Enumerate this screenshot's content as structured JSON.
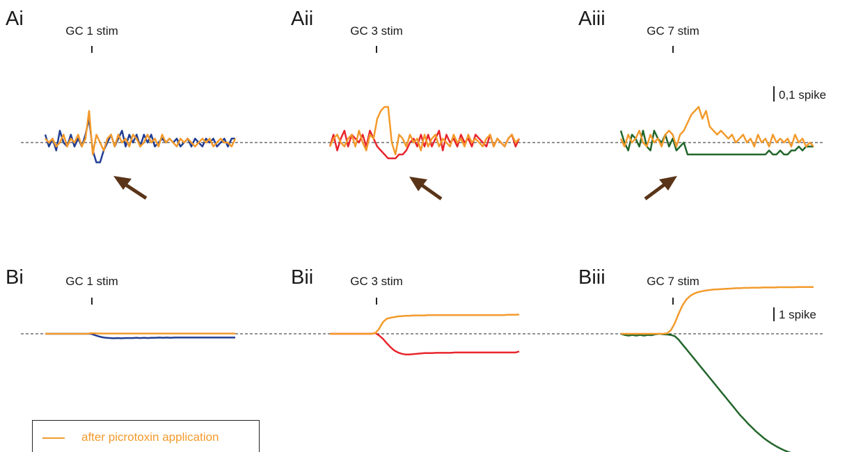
{
  "colors": {
    "picrotoxin": "#f39a2b",
    "gc1": "#213e92",
    "gc3": "#e8252d",
    "gc7": "#21652a",
    "arrow": "#5a3418"
  },
  "legend": {
    "label": "after picrotoxin application"
  },
  "scale_bars": {
    "row_a": "0,1 spike",
    "row_b": "1 spike"
  },
  "chart_data": [
    {
      "type": "line",
      "panel": "Ai",
      "stim_label": "GC 1 stim",
      "x": [
        0,
        1,
        2,
        3,
        4,
        5,
        6,
        7,
        8,
        9,
        10,
        11,
        12,
        13,
        14,
        15,
        16,
        17,
        18,
        19,
        20,
        21,
        22,
        23,
        24,
        25,
        26,
        27,
        28,
        29,
        30,
        31,
        32,
        33,
        34,
        35,
        36,
        37,
        38,
        39,
        40,
        41,
        42,
        43,
        44,
        45,
        46,
        47,
        48,
        49,
        50,
        51,
        52
      ],
      "stim_index": 12,
      "ylim": [
        -0.1,
        0.1
      ],
      "series": [
        {
          "color_key": "gc1",
          "values": [
            0.02,
            -0.01,
            0.01,
            -0.02,
            0.03,
            0,
            -0.01,
            0.02,
            -0.01,
            0.01,
            -0.01,
            0.02,
            0.06,
            -0.02,
            -0.05,
            -0.05,
            -0.02,
            0,
            0.02,
            -0.01,
            0.01,
            0.03,
            -0.01,
            0.02,
            0,
            0.02,
            -0.01,
            0.02,
            0,
            0.02,
            -0.01,
            0,
            0.01,
            0,
            0.01,
            0,
            0.01,
            -0.01,
            0,
            0.01,
            -0.01,
            0.01,
            0,
            -0.01,
            0.01,
            0,
            0.01,
            -0.01,
            0,
            0.01,
            -0.01,
            0.01,
            0.01
          ]
        },
        {
          "color_key": "picrotoxin",
          "values": [
            0.01,
            0,
            0.01,
            -0.01,
            0,
            0.02,
            -0.01,
            0.01,
            0,
            0.02,
            -0.01,
            0.01,
            0.08,
            -0.03,
            0.02,
            0,
            -0.02,
            0.01,
            0.02,
            -0.01,
            0.02,
            0,
            0.01,
            -0.01,
            0.02,
            0.01,
            -0.01,
            0,
            0.02,
            0,
            0.01,
            -0.01,
            0.02,
            0,
            0.01,
            0,
            -0.01,
            0.01,
            0,
            0.01,
            0,
            -0.01,
            0,
            0.01,
            0,
            0.01,
            -0.01,
            0,
            0.01,
            0,
            0,
            -0.01,
            0.01
          ]
        }
      ]
    },
    {
      "type": "line",
      "panel": "Aii",
      "stim_label": "GC 3 stim",
      "x": [
        0,
        1,
        2,
        3,
        4,
        5,
        6,
        7,
        8,
        9,
        10,
        11,
        12,
        13,
        14,
        15,
        16,
        17,
        18,
        19,
        20,
        21,
        22,
        23,
        24,
        25,
        26,
        27,
        28,
        29,
        30,
        31,
        32,
        33,
        34,
        35,
        36,
        37,
        38,
        39,
        40,
        41,
        42,
        43,
        44,
        45,
        46,
        47,
        48,
        49,
        50,
        51,
        52
      ],
      "stim_index": 13,
      "ylim": [
        -0.1,
        0.1
      ],
      "series": [
        {
          "color_key": "gc3",
          "values": [
            -0.01,
            0.02,
            -0.02,
            0.01,
            0.03,
            -0.01,
            0.02,
            0.01,
            0,
            0.02,
            -0.01,
            0.03,
            0.01,
            -0.01,
            -0.02,
            -0.03,
            -0.04,
            -0.04,
            -0.04,
            -0.03,
            -0.03,
            -0.02,
            0,
            0.01,
            -0.01,
            0.02,
            -0.01,
            0.02,
            -0.01,
            0.01,
            0.03,
            -0.02,
            0.02,
            0,
            0.01,
            -0.01,
            0.02,
            0,
            0.01,
            -0.01,
            0.02,
            0.01,
            0,
            -0.01,
            0.02,
            -0.01,
            0.01,
            0,
            -0.01,
            0.01,
            0.02,
            -0.01,
            0.01
          ]
        },
        {
          "color_key": "picrotoxin",
          "values": [
            -0.01,
            0.01,
            0.02,
            0,
            -0.01,
            0.01,
            0.02,
            -0.01,
            0.03,
            0,
            -0.02,
            0.02,
            0.01,
            0.06,
            0.08,
            0.09,
            0.09,
            0,
            -0.03,
            0.02,
            0.01,
            -0.01,
            0.02,
            0,
            0.01,
            -0.02,
            0.02,
            -0.01,
            0.01,
            0.02,
            -0.01,
            0.01,
            0,
            -0.01,
            0.02,
            0,
            0.01,
            -0.01,
            0.02,
            0,
            0.01,
            0,
            -0.01,
            0.01,
            0.02,
            -0.01,
            0.01,
            0,
            -0.01,
            0.01,
            0.02,
            0,
            0.01
          ]
        }
      ]
    },
    {
      "type": "line",
      "panel": "Aiii",
      "stim_label": "GC 7 stim",
      "x": [
        0,
        1,
        2,
        3,
        4,
        5,
        6,
        7,
        8,
        9,
        10,
        11,
        12,
        13,
        14,
        15,
        16,
        17,
        18,
        19,
        20,
        21,
        22,
        23,
        24,
        25,
        26,
        27,
        28,
        29,
        30,
        31,
        32,
        33,
        34,
        35,
        36,
        37,
        38,
        39,
        40,
        41,
        42,
        43,
        44,
        45,
        46,
        47,
        48,
        49,
        50,
        51,
        52
      ],
      "stim_index": 15,
      "ylim": [
        -0.1,
        0.1
      ],
      "series": [
        {
          "color_key": "gc7",
          "values": [
            0.03,
            0,
            -0.02,
            0.02,
            0.01,
            -0.01,
            0.03,
            -0.01,
            -0.02,
            0.03,
            0.01,
            0,
            0.02,
            -0.01,
            0.01,
            -0.02,
            -0.01,
            0,
            -0.03,
            -0.03,
            -0.03,
            -0.03,
            -0.03,
            -0.03,
            -0.03,
            -0.03,
            -0.03,
            -0.03,
            -0.03,
            -0.03,
            -0.03,
            -0.03,
            -0.03,
            -0.03,
            -0.03,
            -0.03,
            -0.03,
            -0.03,
            -0.03,
            -0.03,
            -0.02,
            -0.03,
            -0.03,
            -0.02,
            -0.03,
            -0.03,
            -0.02,
            -0.02,
            -0.01,
            -0.02,
            -0.01,
            -0.01,
            -0.01
          ]
        },
        {
          "color_key": "picrotoxin",
          "values": [
            0.01,
            -0.01,
            0.02,
            0,
            0.01,
            0.03,
            0,
            -0.01,
            0.02,
            0,
            0.01,
            -0.01,
            0.02,
            0.03,
            0.02,
            -0.01,
            0.02,
            0.03,
            0.05,
            0.07,
            0.08,
            0.09,
            0.06,
            0.08,
            0.04,
            0.03,
            0.02,
            0.03,
            0.02,
            0.01,
            0.02,
            0,
            0.01,
            0.02,
            0,
            0.01,
            -0.01,
            0.02,
            0,
            0.01,
            -0.01,
            0.02,
            0,
            0.01,
            0,
            0.01,
            -0.01,
            0.02,
            0,
            0.01,
            -0.01,
            0,
            -0.01
          ]
        }
      ]
    },
    {
      "type": "line",
      "panel": "Bi",
      "stim_label": "GC 1 stim",
      "x": [
        0,
        1,
        2,
        3,
        4,
        5,
        6,
        7,
        8,
        9,
        10,
        11,
        12,
        13,
        14,
        15,
        16,
        17,
        18,
        19,
        20,
        21,
        22,
        23,
        24,
        25,
        26,
        27,
        28,
        29,
        30,
        31,
        32,
        33,
        34,
        35,
        36,
        37,
        38,
        39,
        40,
        41,
        42,
        43,
        44,
        45,
        46,
        47,
        48,
        49,
        50
      ],
      "stim_index": 12,
      "ylim": [
        -5,
        2
      ],
      "series": [
        {
          "color_key": "gc1",
          "values": [
            0,
            0,
            0,
            0,
            0,
            0,
            0,
            0,
            0,
            0,
            0,
            0,
            0,
            -0.05,
            -0.1,
            -0.14,
            -0.16,
            -0.17,
            -0.18,
            -0.17,
            -0.18,
            -0.17,
            -0.17,
            -0.17,
            -0.16,
            -0.17,
            -0.16,
            -0.17,
            -0.16,
            -0.16,
            -0.15,
            -0.16,
            -0.15,
            -0.16,
            -0.15,
            -0.15,
            -0.15,
            -0.15,
            -0.15,
            -0.15,
            -0.15,
            -0.15,
            -0.15,
            -0.15,
            -0.15,
            -0.15,
            -0.15,
            -0.15,
            -0.15,
            -0.15,
            -0.15
          ]
        },
        {
          "color_key": "picrotoxin",
          "values": [
            0,
            0,
            0,
            0,
            0,
            0,
            0,
            0,
            0,
            0,
            0,
            0,
            0.02,
            0.02,
            0.01,
            0.01,
            0.01,
            0.01,
            0.01,
            0.01,
            0.01,
            0.01,
            0.01,
            0.01,
            0.01,
            0.01,
            0.01,
            0.01,
            0.01,
            0.01,
            0.01,
            0.01,
            0.01,
            0.01,
            0.01,
            0.01,
            0.01,
            0.01,
            0.01,
            0.01,
            0.01,
            0.01,
            0.01,
            0.01,
            0.01,
            0.01,
            0.01,
            0.01,
            0.01,
            0.01,
            0.01
          ]
        }
      ]
    },
    {
      "type": "line",
      "panel": "Bii",
      "stim_label": "GC 3 stim",
      "x": [
        0,
        1,
        2,
        3,
        4,
        5,
        6,
        7,
        8,
        9,
        10,
        11,
        12,
        13,
        14,
        15,
        16,
        17,
        18,
        19,
        20,
        21,
        22,
        23,
        24,
        25,
        26,
        27,
        28,
        29,
        30,
        31,
        32,
        33,
        34,
        35,
        36,
        37,
        38,
        39,
        40,
        41,
        42,
        43,
        44,
        45,
        46,
        47,
        48,
        49,
        50
      ],
      "stim_index": 13,
      "ylim": [
        -5,
        2
      ],
      "series": [
        {
          "color_key": "gc3",
          "values": [
            0,
            0,
            0,
            0,
            0,
            0,
            0,
            0,
            0,
            0,
            0,
            0,
            0.02,
            -0.05,
            -0.15,
            -0.28,
            -0.4,
            -0.5,
            -0.56,
            -0.6,
            -0.62,
            -0.62,
            -0.61,
            -0.6,
            -0.59,
            -0.58,
            -0.58,
            -0.58,
            -0.57,
            -0.57,
            -0.57,
            -0.57,
            -0.57,
            -0.56,
            -0.56,
            -0.56,
            -0.56,
            -0.56,
            -0.56,
            -0.56,
            -0.56,
            -0.56,
            -0.56,
            -0.56,
            -0.56,
            -0.56,
            -0.56,
            -0.56,
            -0.56,
            -0.56,
            -0.53
          ]
        },
        {
          "color_key": "picrotoxin",
          "values": [
            0,
            0,
            0,
            0,
            0,
            0,
            0,
            0,
            0,
            0,
            0,
            0,
            0.02,
            0.15,
            0.35,
            0.45,
            0.48,
            0.5,
            0.52,
            0.53,
            0.54,
            0.54,
            0.55,
            0.55,
            0.55,
            0.55,
            0.56,
            0.56,
            0.56,
            0.56,
            0.56,
            0.56,
            0.56,
            0.56,
            0.56,
            0.56,
            0.56,
            0.56,
            0.56,
            0.56,
            0.56,
            0.56,
            0.56,
            0.56,
            0.56,
            0.56,
            0.56,
            0.57,
            0.57,
            0.57,
            0.58
          ]
        }
      ]
    },
    {
      "type": "line",
      "panel": "Biii",
      "stim_label": "GC 7 stim",
      "x": [
        0,
        1,
        2,
        3,
        4,
        5,
        6,
        7,
        8,
        9,
        10,
        11,
        12,
        13,
        14,
        15,
        16,
        17,
        18,
        19,
        20,
        21,
        22,
        23,
        24,
        25,
        26,
        27,
        28,
        29,
        30,
        31,
        32,
        33,
        34,
        35,
        36,
        37,
        38,
        39,
        40,
        41,
        42,
        43,
        44,
        45,
        46,
        47,
        48,
        49,
        50
      ],
      "stim_index": 14,
      "ylim": [
        -5,
        2
      ],
      "series": [
        {
          "color_key": "gc7",
          "values": [
            0,
            -0.05,
            -0.08,
            -0.05,
            -0.08,
            -0.05,
            -0.08,
            -0.05,
            -0.06,
            -0.02,
            0,
            -0.02,
            -0.03,
            -0.05,
            -0.1,
            -0.25,
            -0.45,
            -0.65,
            -0.85,
            -1.05,
            -1.25,
            -1.45,
            -1.65,
            -1.85,
            -2.05,
            -2.25,
            -2.45,
            -2.65,
            -2.85,
            -3.05,
            -3.25,
            -3.45,
            -3.62,
            -3.8,
            -3.96,
            -4.12,
            -4.26,
            -4.4,
            -4.52,
            -4.63,
            -4.73,
            -4.82,
            -4.9,
            -4.97,
            -5.03,
            -5.08,
            -5.13,
            -5.18,
            -5.22,
            -5.26,
            -5.3
          ]
        },
        {
          "color_key": "picrotoxin",
          "values": [
            0,
            0,
            0,
            0,
            0,
            0,
            0,
            0,
            0,
            0,
            0,
            0,
            0.02,
            0.15,
            0.45,
            0.85,
            1.2,
            1.45,
            1.6,
            1.7,
            1.76,
            1.8,
            1.83,
            1.85,
            1.87,
            1.88,
            1.89,
            1.9,
            1.91,
            1.92,
            1.93,
            1.93,
            1.94,
            1.94,
            1.95,
            1.95,
            1.95,
            1.96,
            1.96,
            1.96,
            1.96,
            1.97,
            1.97,
            1.97,
            1.97,
            1.97,
            1.98,
            1.98,
            1.98,
            1.98,
            1.98
          ]
        }
      ]
    }
  ]
}
